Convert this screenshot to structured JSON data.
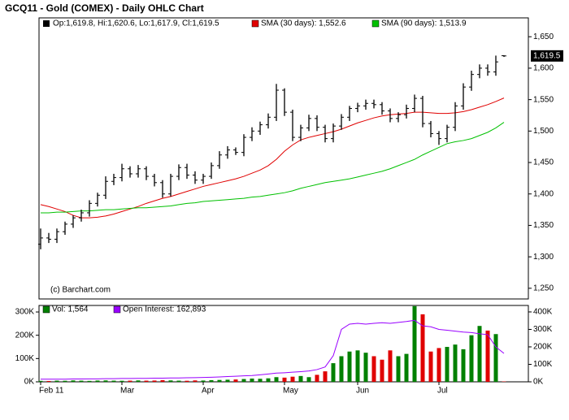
{
  "chart_data": [
    {
      "type": "ohlc",
      "title": "GCQ11 - Gold (COMEX) - Daily OHLC Chart",
      "legend": "Op:1,619.8, Hi:1,620.6, Lo:1,617.9, Cl:1,619.5",
      "color": "#000000",
      "credit": "(c) Barchart.com",
      "open": [
        1320,
        1330,
        1328,
        1340,
        1352,
        1362,
        1370,
        1385,
        1398,
        1420,
        1426,
        1440,
        1432,
        1440,
        1428,
        1418,
        1400,
        1428,
        1442,
        1430,
        1422,
        1428,
        1445,
        1462,
        1470,
        1466,
        1490,
        1500,
        1510,
        1522,
        1565,
        1530,
        1490,
        1505,
        1520,
        1506,
        1488,
        1508,
        1522,
        1536,
        1540,
        1544,
        1542,
        1532,
        1520,
        1526,
        1536,
        1552,
        1512,
        1496,
        1488,
        1506,
        1540,
        1570,
        1590,
        1600,
        1594,
        1619.8
      ],
      "high": [
        1345,
        1338,
        1345,
        1356,
        1366,
        1375,
        1390,
        1402,
        1428,
        1432,
        1448,
        1444,
        1446,
        1444,
        1432,
        1422,
        1432,
        1447,
        1448,
        1436,
        1432,
        1450,
        1468,
        1476,
        1474,
        1495,
        1506,
        1515,
        1528,
        1575,
        1568,
        1534,
        1510,
        1526,
        1525,
        1510,
        1512,
        1527,
        1540,
        1545,
        1550,
        1550,
        1546,
        1536,
        1530,
        1542,
        1558,
        1556,
        1516,
        1500,
        1510,
        1546,
        1576,
        1596,
        1606,
        1606,
        1620,
        1620.6
      ],
      "low": [
        1312,
        1322,
        1322,
        1335,
        1346,
        1356,
        1364,
        1380,
        1392,
        1414,
        1420,
        1426,
        1426,
        1422,
        1412,
        1394,
        1396,
        1422,
        1424,
        1416,
        1416,
        1424,
        1440,
        1456,
        1462,
        1460,
        1484,
        1494,
        1504,
        1516,
        1524,
        1484,
        1484,
        1500,
        1500,
        1482,
        1482,
        1502,
        1516,
        1530,
        1534,
        1536,
        1526,
        1514,
        1514,
        1520,
        1530,
        1506,
        1490,
        1478,
        1482,
        1500,
        1534,
        1564,
        1584,
        1588,
        1588,
        1617.9
      ],
      "close": [
        1330,
        1328,
        1340,
        1352,
        1362,
        1370,
        1385,
        1398,
        1420,
        1426,
        1440,
        1432,
        1440,
        1428,
        1418,
        1400,
        1428,
        1442,
        1430,
        1422,
        1428,
        1445,
        1462,
        1470,
        1466,
        1490,
        1500,
        1510,
        1522,
        1565,
        1530,
        1490,
        1505,
        1520,
        1506,
        1488,
        1508,
        1522,
        1536,
        1540,
        1544,
        1542,
        1532,
        1520,
        1526,
        1536,
        1552,
        1512,
        1496,
        1488,
        1506,
        1540,
        1570,
        1590,
        1600,
        1594,
        1610,
        1619.5
      ],
      "series": [
        {
          "name": "SMA (30 days): 1,552.6",
          "color": "#e00000",
          "values": [
            1383,
            1380,
            1376,
            1372,
            1366,
            1362,
            1362,
            1363,
            1365,
            1368,
            1372,
            1376,
            1380,
            1385,
            1389,
            1393,
            1396,
            1400,
            1404,
            1408,
            1412,
            1415,
            1418,
            1421,
            1424,
            1428,
            1433,
            1438,
            1445,
            1455,
            1468,
            1478,
            1486,
            1490,
            1493,
            1496,
            1499,
            1503,
            1508,
            1513,
            1517,
            1521,
            1524,
            1526,
            1527,
            1528,
            1530,
            1530,
            1529,
            1528,
            1528,
            1529,
            1531,
            1534,
            1538,
            1542,
            1547,
            1552.6
          ]
        },
        {
          "name": "SMA (90 days): 1,513.9",
          "color": "#00c000",
          "values": [
            1370,
            1370,
            1371,
            1371,
            1372,
            1373,
            1373,
            1374,
            1375,
            1375,
            1376,
            1377,
            1378,
            1378,
            1379,
            1380,
            1381,
            1383,
            1385,
            1386,
            1388,
            1389,
            1390,
            1391,
            1392,
            1393,
            1395,
            1396,
            1398,
            1400,
            1402,
            1405,
            1409,
            1412,
            1415,
            1418,
            1420,
            1422,
            1424,
            1427,
            1430,
            1433,
            1436,
            1440,
            1445,
            1450,
            1455,
            1462,
            1468,
            1474,
            1480,
            1483,
            1485,
            1488,
            1493,
            1498,
            1505,
            1513.9
          ]
        }
      ],
      "last_price": {
        "value": 1619.5,
        "label": "1,619.5"
      },
      "ylim": [
        1233,
        1680
      ],
      "yticks": [
        {
          "value": 1250,
          "label": "1,250"
        },
        {
          "value": 1300,
          "label": "1,300"
        },
        {
          "value": 1350,
          "label": "1,350"
        },
        {
          "value": 1400,
          "label": "1,400"
        },
        {
          "value": 1450,
          "label": "1,450"
        },
        {
          "value": 1500,
          "label": "1,500"
        },
        {
          "value": 1550,
          "label": "1,550"
        },
        {
          "value": 1600,
          "label": "1,600"
        },
        {
          "value": 1650,
          "label": "1,650"
        }
      ]
    },
    {
      "type": "bar",
      "categories": [
        "Feb 11",
        null,
        null,
        null,
        null,
        null,
        null,
        null,
        null,
        null,
        "Mar",
        null,
        null,
        null,
        null,
        null,
        null,
        null,
        null,
        null,
        "Apr",
        null,
        null,
        null,
        null,
        null,
        null,
        null,
        null,
        null,
        "May",
        null,
        null,
        null,
        null,
        null,
        null,
        null,
        null,
        "Jun",
        null,
        null,
        null,
        null,
        null,
        null,
        null,
        null,
        null,
        "Jul",
        null,
        null,
        null,
        null,
        null,
        null,
        null,
        null
      ],
      "up_color": "#008000",
      "down_color": "#e00000",
      "series": [
        {
          "name": "Vol: 1,564",
          "color": "#008000",
          "values": [
            4000,
            3500,
            5000,
            4500,
            6000,
            5000,
            4000,
            5500,
            6000,
            5000,
            4500,
            5000,
            6000,
            5000,
            5500,
            7000,
            6000,
            5000,
            4500,
            6000,
            5500,
            7000,
            8000,
            9000,
            10000,
            12000,
            14000,
            13000,
            15000,
            20000,
            18000,
            22000,
            25000,
            20000,
            30000,
            45000,
            80000,
            110000,
            130000,
            135000,
            125000,
            110000,
            95000,
            135000,
            110000,
            120000,
            325000,
            290000,
            130000,
            145000,
            150000,
            160000,
            140000,
            200000,
            240000,
            220000,
            205000,
            1564
          ]
        },
        {
          "name": "Open Interest: 162,893",
          "color": "#9900ff",
          "axis": "y2",
          "values": [
            15000,
            15000,
            15000,
            15000,
            16000,
            16000,
            17000,
            17000,
            18000,
            18000,
            19000,
            19000,
            20000,
            20000,
            21000,
            21000,
            22000,
            22000,
            23000,
            24000,
            25000,
            26000,
            28000,
            30000,
            32000,
            34000,
            36000,
            40000,
            45000,
            50000,
            52000,
            55000,
            58000,
            62000,
            70000,
            85000,
            150000,
            300000,
            330000,
            335000,
            330000,
            335000,
            338000,
            335000,
            340000,
            345000,
            352000,
            320000,
            315000,
            300000,
            295000,
            290000,
            285000,
            282000,
            275000,
            270000,
            200000,
            162893
          ]
        }
      ],
      "ylim": [
        0,
        328000
      ],
      "yticks": [
        {
          "value": 0,
          "label": "0K"
        },
        {
          "value": 100000,
          "label": "100K"
        },
        {
          "value": 200000,
          "label": "200K"
        },
        {
          "value": 300000,
          "label": "300K"
        }
      ],
      "y2lim": [
        0,
        437000
      ],
      "y2ticks": [
        {
          "value": 0,
          "label": "0K"
        },
        {
          "value": 100000,
          "label": "100K"
        },
        {
          "value": 200000,
          "label": "200K"
        },
        {
          "value": 300000,
          "label": "300K"
        },
        {
          "value": 400000,
          "label": "400K"
        }
      ]
    }
  ]
}
